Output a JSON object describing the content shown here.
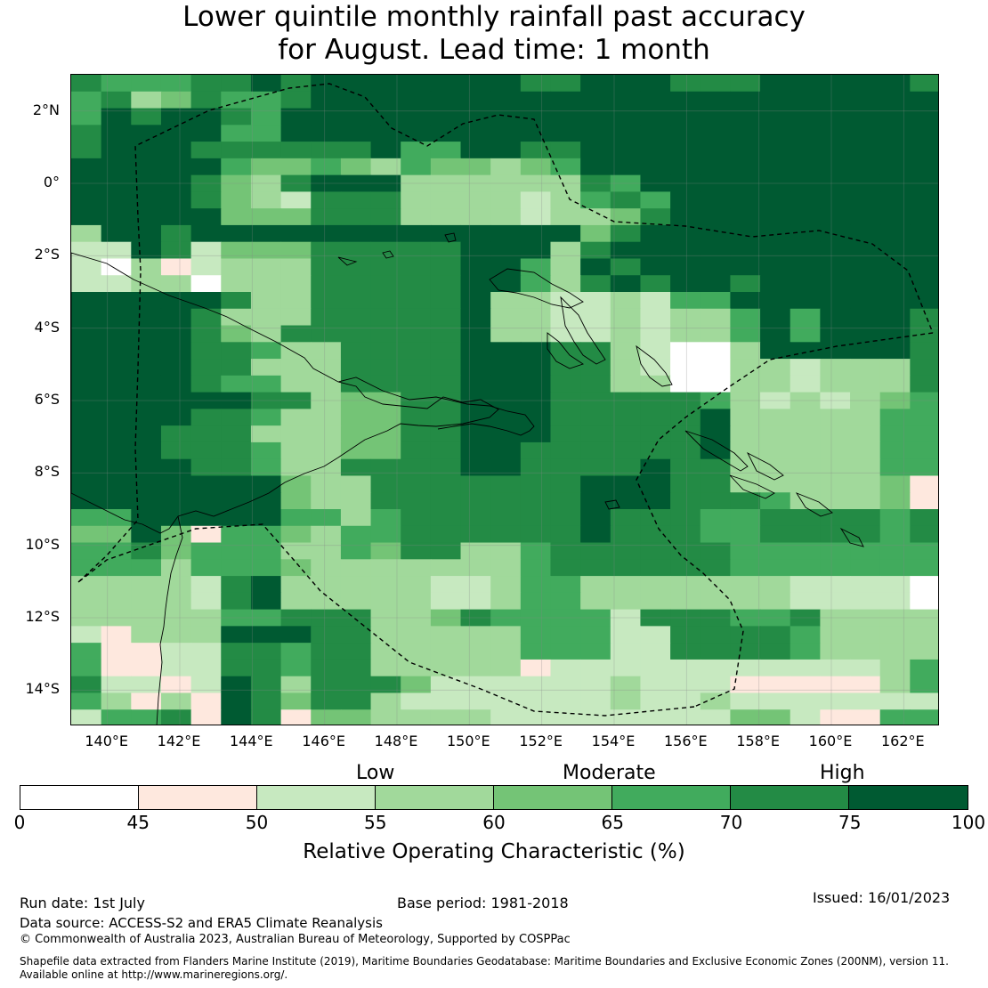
{
  "title_line1": "Lower quintile monthly rainfall past accuracy",
  "title_line2": "for August. Lead time: 1 month",
  "lat_labels": [
    "2°N",
    "0°",
    "2°S",
    "4°S",
    "6°S",
    "8°S",
    "10°S",
    "12°S",
    "14°S"
  ],
  "lat_values": [
    2,
    0,
    -2,
    -4,
    -6,
    -8,
    -10,
    -12,
    -14
  ],
  "lon_labels": [
    "140°E",
    "142°E",
    "144°E",
    "146°E",
    "148°E",
    "150°E",
    "152°E",
    "154°E",
    "156°E",
    "158°E",
    "160°E",
    "162°E"
  ],
  "lon_values": [
    140,
    142,
    144,
    146,
    148,
    150,
    152,
    154,
    156,
    158,
    160,
    162
  ],
  "map_extent": {
    "lon_min": 139,
    "lon_max": 163,
    "lat_min": -15,
    "lat_max": 3
  },
  "colorbar": {
    "categories": [
      "Low",
      "Moderate",
      "High"
    ],
    "ticks": [
      "0",
      "45",
      "50",
      "55",
      "60",
      "65",
      "70",
      "75",
      "100"
    ],
    "colors": [
      "#ffffff",
      "#fee8de",
      "#c7e9c0",
      "#a1d99b",
      "#74c476",
      "#41ab5d",
      "#238b45",
      "#005a32"
    ],
    "label": "Relative Operating Characteristic (%)"
  },
  "footer": {
    "run_date": "Run date: 1st July",
    "base_period": "Base period: 1981-2018",
    "issued": "Issued: 16/01/2023",
    "data_source": "Data source: ACCESS-S2 and ERA5 Climate Reanalysis",
    "copyright": "© Commonwealth of Australia 2023, Australian Bureau of Meteorology, Supported by COSPPac",
    "shapefile_line1": "Shapefile data extracted from Flanders Marine Institute (2019), Maritime Boundaries Geodatabase: Maritime Boundaries and Exclusive Economic Zones (200NM), version 11.",
    "shapefile_line2": "Available online at http://www.marineregions.org/."
  },
  "grid_rows": [
    "65556676777777766777666777776",
    "56346556777777777777777777777",
    "57677657777777777777777777777",
    "67777557777777777777777777777",
    "67776666667557766777777777777",
    "77777544543544345777777777777",
    "77776436777333333657777777777",
    "77776432666333323565777777777",
    "77777444666333323346777777777",
    "37767777777777777467777777777",
    "22762444666667773677777777777",
    "20312333666667753767777777777",
    "22330333666667753676776777777",
    "77777633666667332232557777777",
    "77776333666667332232335757776",
    "77776436666667332232335757776",
    "77776653366667776632003777776",
    "77776633366667776632003323336",
    "77776553366667776633003323336",
    "77777766344667776666653232345",
    "77776653344667776666673333355",
    "77766633344667776666673333355",
    "77766653344667766666673333355",
    "77776653366667766667663333355",
    "77777774336666666777663333341",
    "77777774336666666777666533341",
    "55777775535666666766655666656",
    "44741554355666666766655666656",
    "55645553354663356666665555555",
    "55535554333333356666665555555",
    "33332673333322355333333322220",
    "33332673333322355333333322220",
    "33333556663346555526665563333",
    "21333777663333355522666653333",
    "51122665663333355522666653333",
    "51122665663333312222222222235",
    "62212763666422222232221111135",
    "53131764663222222232232222222",
    "25561761443333222222224421155"
  ]
}
